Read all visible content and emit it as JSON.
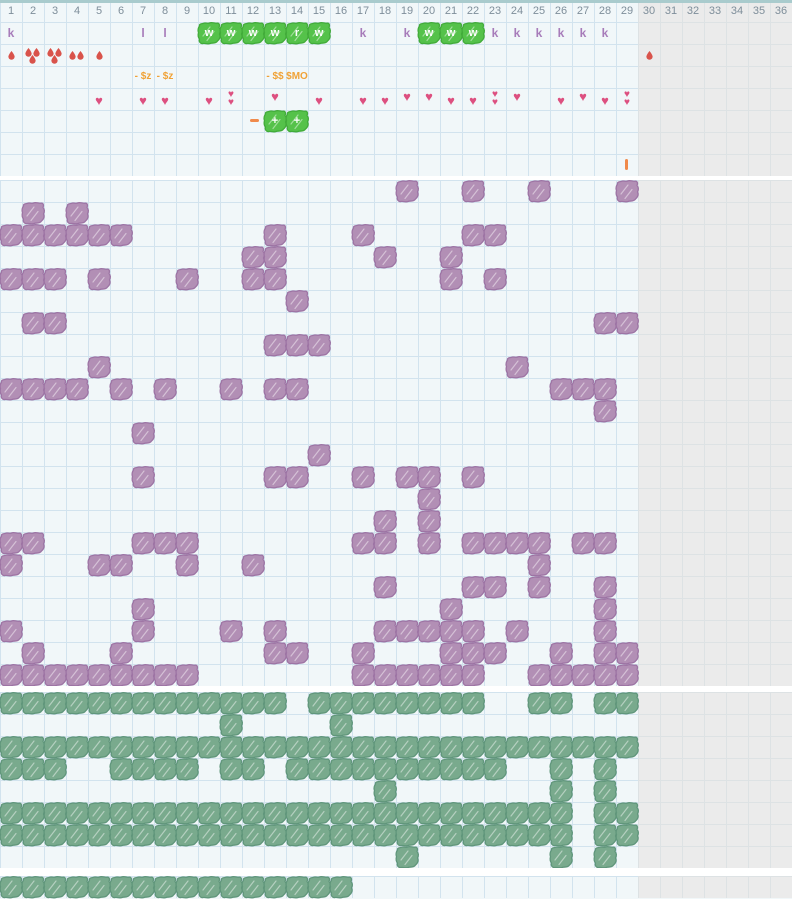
{
  "grid": {
    "columns": 36,
    "cell_size": 22,
    "light_columns": 29,
    "header_numbers": [
      "1",
      "2",
      "3",
      "4",
      "5",
      "6",
      "7",
      "8",
      "9",
      "10",
      "11",
      "12",
      "13",
      "14",
      "15",
      "16",
      "17",
      "18",
      "19",
      "20",
      "21",
      "22",
      "23",
      "24",
      "25",
      "26",
      "27",
      "28",
      "29",
      "30",
      "31",
      "32",
      "33",
      "34",
      "35",
      "36"
    ]
  },
  "colors": {
    "background_light": "#f1f7f9",
    "background_gray": "#ebebeb",
    "gridline": "#d2e3ee",
    "divider": "#ffffff",
    "header_text": "#7e8e9a",
    "purple_letter": "#a77cba",
    "bright_green_blob": "#55c24a",
    "purple_blob": "#b28fb5",
    "green_blob": "#79aa8d",
    "drop_red": "#d9534b",
    "heart_pink": "#dd5080",
    "orange": "#f0a237",
    "bottom_line": "#a9cbcd"
  },
  "symbols": [
    {
      "row": 1,
      "col": 1,
      "kind": "purple-letter",
      "value": "k"
    },
    {
      "row": 1,
      "col": 7,
      "kind": "purple-letter",
      "value": "l"
    },
    {
      "row": 1,
      "col": 8,
      "kind": "purple-letter",
      "value": "l"
    },
    {
      "row": 1,
      "col": 10,
      "kind": "green-blob-letter",
      "value": "w"
    },
    {
      "row": 1,
      "col": 11,
      "kind": "green-blob-letter",
      "value": "w"
    },
    {
      "row": 1,
      "col": 12,
      "kind": "green-blob-letter",
      "value": "w"
    },
    {
      "row": 1,
      "col": 13,
      "kind": "green-blob-letter",
      "value": "w"
    },
    {
      "row": 1,
      "col": 14,
      "kind": "green-blob-letter",
      "value": "r"
    },
    {
      "row": 1,
      "col": 15,
      "kind": "green-blob-letter",
      "value": "w"
    },
    {
      "row": 1,
      "col": 17,
      "kind": "purple-letter",
      "value": "k"
    },
    {
      "row": 1,
      "col": 19,
      "kind": "purple-letter",
      "value": "k"
    },
    {
      "row": 1,
      "col": 20,
      "kind": "green-blob-letter",
      "value": "w"
    },
    {
      "row": 1,
      "col": 21,
      "kind": "green-blob-letter",
      "value": "w"
    },
    {
      "row": 1,
      "col": 22,
      "kind": "green-blob-letter",
      "value": "w"
    },
    {
      "row": 1,
      "col": 23,
      "kind": "purple-letter",
      "value": "k"
    },
    {
      "row": 1,
      "col": 24,
      "kind": "purple-letter",
      "value": "k"
    },
    {
      "row": 1,
      "col": 25,
      "kind": "purple-letter",
      "value": "k"
    },
    {
      "row": 1,
      "col": 26,
      "kind": "purple-letter",
      "value": "k"
    },
    {
      "row": 1,
      "col": 27,
      "kind": "purple-letter",
      "value": "k"
    },
    {
      "row": 1,
      "col": 28,
      "kind": "purple-letter",
      "value": "k"
    },
    {
      "row": 2,
      "col": 1,
      "kind": "drops",
      "value": "1"
    },
    {
      "row": 2,
      "col": 2,
      "kind": "drops",
      "value": "3"
    },
    {
      "row": 2,
      "col": 3,
      "kind": "drops",
      "value": "3"
    },
    {
      "row": 2,
      "col": 4,
      "kind": "drops",
      "value": "2"
    },
    {
      "row": 2,
      "col": 5,
      "kind": "drops",
      "value": "1"
    },
    {
      "row": 2,
      "col": 30,
      "kind": "drops",
      "value": "1"
    },
    {
      "row": 3,
      "col": 7,
      "kind": "orange-text",
      "value": "- $z"
    },
    {
      "row": 3,
      "col": 8,
      "kind": "orange-text",
      "value": "- $z"
    },
    {
      "row": 3,
      "col": 13,
      "kind": "orange-text",
      "value": "- $$"
    },
    {
      "row": 3,
      "col": 14,
      "kind": "orange-text",
      "value": "$MO"
    },
    {
      "row": 4,
      "col": 5,
      "kind": "heart",
      "value": "single"
    },
    {
      "row": 4,
      "col": 7,
      "kind": "heart",
      "value": "single"
    },
    {
      "row": 4,
      "col": 8,
      "kind": "heart",
      "value": "single"
    },
    {
      "row": 4,
      "col": 10,
      "kind": "heart",
      "value": "single"
    },
    {
      "row": 4,
      "col": 11,
      "kind": "heart",
      "value": "double"
    },
    {
      "row": 4,
      "col": 13,
      "kind": "heart",
      "value": "single",
      "raised": true
    },
    {
      "row": 4,
      "col": 15,
      "kind": "heart",
      "value": "single"
    },
    {
      "row": 4,
      "col": 17,
      "kind": "heart",
      "value": "single"
    },
    {
      "row": 4,
      "col": 18,
      "kind": "heart",
      "value": "single"
    },
    {
      "row": 4,
      "col": 19,
      "kind": "heart",
      "value": "single",
      "raised": true
    },
    {
      "row": 4,
      "col": 20,
      "kind": "heart",
      "value": "single",
      "raised": true
    },
    {
      "row": 4,
      "col": 21,
      "kind": "heart",
      "value": "single"
    },
    {
      "row": 4,
      "col": 22,
      "kind": "heart",
      "value": "single"
    },
    {
      "row": 4,
      "col": 23,
      "kind": "heart",
      "value": "double"
    },
    {
      "row": 4,
      "col": 24,
      "kind": "heart",
      "value": "single",
      "raised": true
    },
    {
      "row": 4,
      "col": 26,
      "kind": "heart",
      "value": "single"
    },
    {
      "row": 4,
      "col": 27,
      "kind": "heart",
      "value": "single",
      "raised": true
    },
    {
      "row": 4,
      "col": 28,
      "kind": "heart",
      "value": "single"
    },
    {
      "row": 4,
      "col": 29,
      "kind": "heart",
      "value": "double"
    },
    {
      "row": 5,
      "col": 12,
      "kind": "orange-dash",
      "value": "-"
    },
    {
      "row": 5,
      "col": 13,
      "kind": "green-blob-letter",
      "value": "+"
    },
    {
      "row": 5,
      "col": 14,
      "kind": "green-blob-letter",
      "value": "+"
    },
    {
      "row": 7,
      "col": 29,
      "kind": "orange-bar",
      "value": "|"
    }
  ],
  "purple_rows": [
    [
      19,
      22,
      25,
      29
    ],
    [
      2,
      4
    ],
    [
      1,
      2,
      3,
      4,
      5,
      6,
      13,
      17,
      22,
      23
    ],
    [
      12,
      13,
      18,
      21
    ],
    [
      1,
      2,
      3,
      5,
      9,
      12,
      13,
      21,
      23
    ],
    [
      14
    ],
    [
      2,
      3,
      28,
      29
    ],
    [
      13,
      14,
      15
    ],
    [
      5,
      24
    ],
    [
      1,
      2,
      3,
      4,
      6,
      8,
      11,
      13,
      14,
      26,
      27,
      28
    ],
    [
      28
    ],
    [
      7
    ],
    [
      15
    ],
    [
      7,
      13,
      14,
      17,
      19,
      20,
      22
    ],
    [
      20
    ],
    [
      18,
      20
    ],
    [
      1,
      2,
      7,
      8,
      9,
      17,
      18,
      20,
      22,
      23,
      24,
      25,
      27,
      28
    ],
    [
      1,
      5,
      6,
      9,
      12,
      25
    ],
    [
      18,
      22,
      23,
      25,
      28
    ],
    [
      7,
      21,
      28
    ],
    [
      1,
      7,
      11,
      13,
      18,
      19,
      20,
      21,
      22,
      24,
      28
    ],
    [
      2,
      6,
      13,
      14,
      17,
      21,
      22,
      23,
      26,
      28,
      29
    ],
    [
      1,
      2,
      3,
      4,
      5,
      6,
      7,
      8,
      9,
      17,
      18,
      19,
      20,
      21,
      22,
      25,
      26,
      27,
      28,
      29
    ]
  ],
  "green_rows": [
    [
      1,
      2,
      3,
      4,
      5,
      6,
      7,
      8,
      9,
      10,
      11,
      12,
      13,
      15,
      16,
      17,
      18,
      19,
      20,
      21,
      22,
      25,
      26,
      28,
      29
    ],
    [
      11,
      16
    ],
    [
      1,
      2,
      3,
      4,
      5,
      6,
      7,
      8,
      9,
      10,
      11,
      12,
      13,
      14,
      15,
      16,
      17,
      18,
      19,
      20,
      21,
      22,
      23,
      24,
      25,
      26,
      27,
      28,
      29
    ],
    [
      1,
      2,
      3,
      6,
      7,
      8,
      9,
      11,
      12,
      14,
      15,
      16,
      17,
      18,
      19,
      20,
      21,
      22,
      23,
      26,
      28
    ],
    [
      18,
      26,
      28
    ],
    [
      1,
      2,
      3,
      4,
      5,
      6,
      7,
      8,
      9,
      10,
      11,
      12,
      13,
      14,
      15,
      16,
      17,
      18,
      19,
      20,
      21,
      22,
      23,
      24,
      25,
      26,
      28,
      29
    ],
    [
      1,
      2,
      3,
      4,
      5,
      6,
      7,
      8,
      9,
      10,
      11,
      12,
      13,
      14,
      15,
      16,
      17,
      18,
      19,
      20,
      21,
      22,
      23,
      24,
      25,
      26,
      28,
      29
    ],
    [
      19,
      26,
      28
    ]
  ],
  "bottom_row": [
    1,
    2,
    3,
    4,
    5,
    6,
    7,
    8,
    9,
    10,
    11,
    12,
    13,
    14,
    15,
    16
  ]
}
